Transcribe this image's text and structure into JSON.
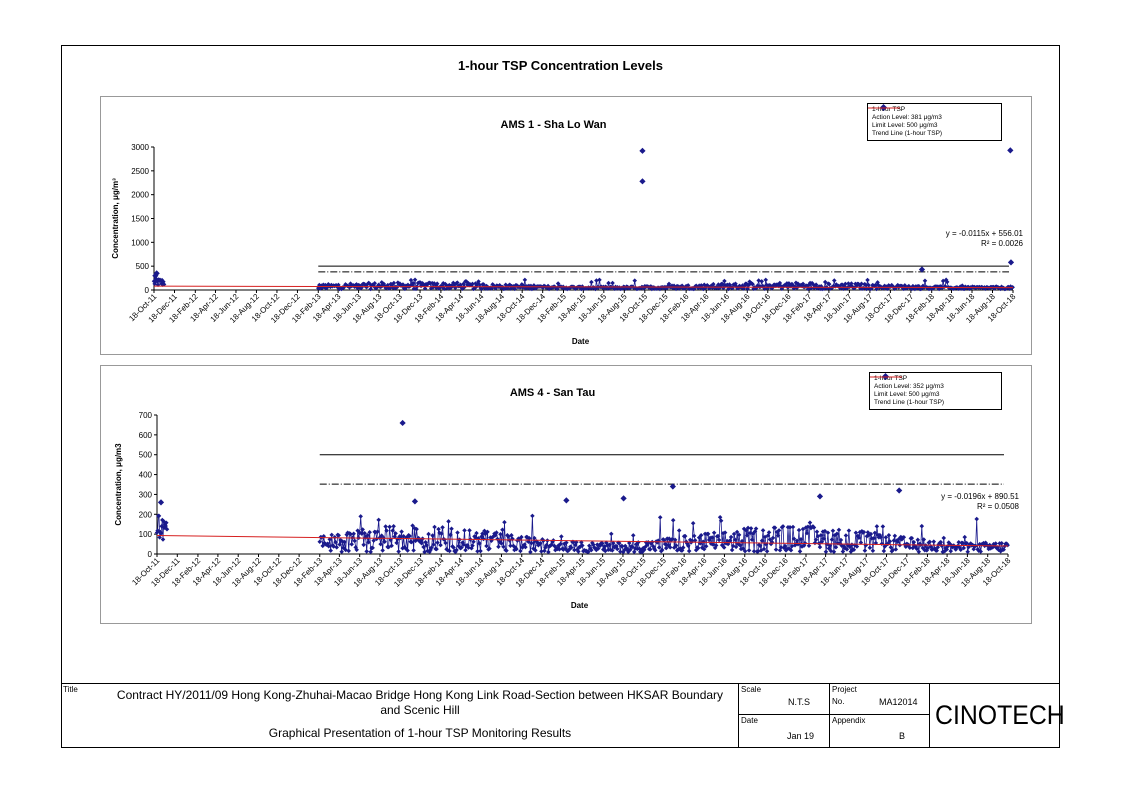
{
  "page_title": "1-hour TSP Concentration Levels",
  "colors": {
    "series": "#1a1a8c",
    "trend": "#d62020",
    "limit": "#000000",
    "action": "#000000"
  },
  "chart_data": [
    {
      "type": "scatter",
      "title": "AMS 1  - Sha Lo Wan",
      "xlabel": "Date",
      "ylabel": "Concentration, μg/m³",
      "ylim": [
        0,
        3000
      ],
      "yticks": [
        0,
        500,
        1000,
        1500,
        2000,
        2500,
        3000
      ],
      "xticks": [
        "18-Oct-11",
        "18-Dec-11",
        "18-Feb-12",
        "18-Apr-12",
        "18-Jun-12",
        "18-Aug-12",
        "18-Oct-12",
        "18-Dec-12",
        "18-Feb-13",
        "18-Apr-13",
        "18-Jun-13",
        "18-Aug-13",
        "18-Oct-13",
        "18-Dec-13",
        "18-Feb-14",
        "18-Apr-14",
        "18-Jun-14",
        "18-Aug-14",
        "18-Oct-14",
        "18-Dec-14",
        "18-Feb-15",
        "18-Apr-15",
        "18-Jun-15",
        "18-Aug-15",
        "18-Oct-15",
        "18-Dec-15",
        "18-Feb-16",
        "18-Apr-16",
        "18-Jun-16",
        "18-Aug-16",
        "18-Oct-16",
        "18-Dec-16",
        "18-Feb-17",
        "18-Apr-17",
        "18-Jun-17",
        "18-Aug-17",
        "18-Oct-17",
        "18-Dec-17",
        "18-Feb-18",
        "18-Apr-18",
        "18-Jun-18",
        "18-Aug-18",
        "18-Oct-18"
      ],
      "legend": [
        "1-hour TSP",
        "Action Level: 381 μg/m3",
        "Limit Level: 500 μg/m3",
        "Trend Line (1-hour TSP)"
      ],
      "legend_position": "top-right",
      "action_level": 381,
      "limit_level": 500,
      "trend_equation": "y = -0.0115x + 556.01",
      "r_squared": "R² = 0.0026",
      "trend_line": {
        "x": [
          "18-Oct-11",
          "18-Oct-18"
        ],
        "y": [
          80,
          50
        ]
      },
      "series": [
        {
          "name": "1-hour TSP",
          "outliers": [
            {
              "x": "11-Oct-15",
              "y": 2920
            },
            {
              "x": "11-Oct-15",
              "y": 2280
            },
            {
              "x": "10-Oct-18",
              "y": 2930
            },
            {
              "x": "12-Oct-18",
              "y": 580
            },
            {
              "x": "20-Jan-18",
              "y": 430
            },
            {
              "x": "26-Oct-11",
              "y": 350
            },
            {
              "x": "22-Oct-11",
              "y": 300
            }
          ],
          "gap": [
            "18-Nov-11",
            "18-Feb-13"
          ],
          "base_range": [
            20,
            220
          ]
        }
      ]
    },
    {
      "type": "scatter",
      "title": "AMS 4 - San Tau",
      "xlabel": "Date",
      "ylabel": "Concentration, μg/m3",
      "ylim": [
        0,
        700
      ],
      "yticks": [
        0,
        100,
        200,
        300,
        400,
        500,
        600,
        700
      ],
      "xticks": [
        "18-Oct-11",
        "18-Dec-11",
        "18-Feb-12",
        "18-Apr-12",
        "18-Jun-12",
        "18-Aug-12",
        "18-Oct-12",
        "18-Dec-12",
        "18-Feb-13",
        "18-Apr-13",
        "18-Jun-13",
        "18-Aug-13",
        "18-Oct-13",
        "18-Dec-13",
        "18-Feb-14",
        "18-Apr-14",
        "18-Jun-14",
        "18-Aug-14",
        "18-Oct-14",
        "18-Dec-14",
        "18-Feb-15",
        "18-Apr-15",
        "18-Jun-15",
        "18-Aug-15",
        "18-Oct-15",
        "18-Dec-15",
        "18-Feb-16",
        "18-Apr-16",
        "18-Jun-16",
        "18-Aug-16",
        "18-Oct-16",
        "18-Dec-16",
        "18-Feb-17",
        "18-Apr-17",
        "18-Jun-17",
        "18-Aug-17",
        "18-Oct-17",
        "18-Dec-17",
        "18-Feb-18",
        "18-Apr-18",
        "18-Jun-18",
        "18-Aug-18",
        "18-Oct-18"
      ],
      "legend": [
        "1-hour TSP",
        "Action Level: 352 μg/m3",
        "Limit Level: 500 μg/m3",
        "Trend Line (1-hour TSP)"
      ],
      "legend_position": "top-right",
      "action_level": 352,
      "limit_level": 500,
      "trend_equation": "y = -0.0196x + 890.51",
      "r_squared": "R² = 0.0508",
      "trend_line": {
        "x": [
          "18-Oct-11",
          "18-Oct-18"
        ],
        "y": [
          93,
          40
        ]
      },
      "series": [
        {
          "name": "1-hour TSP",
          "outliers": [
            {
              "x": "25-Oct-13",
              "y": 660
            },
            {
              "x": "15-Jan-16",
              "y": 340
            },
            {
              "x": "25-Nov-17",
              "y": 320
            },
            {
              "x": "01-Apr-17",
              "y": 290
            },
            {
              "x": "20-Aug-15",
              "y": 280
            },
            {
              "x": "01-Mar-15",
              "y": 270
            },
            {
              "x": "01-Dec-13",
              "y": 265
            },
            {
              "x": "30-Oct-11",
              "y": 260
            }
          ],
          "gap": [
            "18-Nov-11",
            "18-Feb-13"
          ],
          "base_range": [
            10,
            200
          ]
        }
      ]
    }
  ],
  "title_block": {
    "title_label": "Title",
    "title_line1": "Contract HY/2011/09 Hong Kong-Zhuhai-Macao Bridge Hong Kong Link Road-Section between HKSAR Boundary",
    "title_line2": "and Scenic Hill",
    "subtitle": "Graphical Presentation of 1-hour TSP Monitoring Results",
    "scale_label": "Scale",
    "scale_value": "N.T.S",
    "project_label": "Project",
    "no_label": "No.",
    "project_no": "MA12014",
    "date_label": "Date",
    "date_value": "Jan 19",
    "appendix_label": "Appendix",
    "appendix_value": "B",
    "logo": "CINOTECH"
  }
}
